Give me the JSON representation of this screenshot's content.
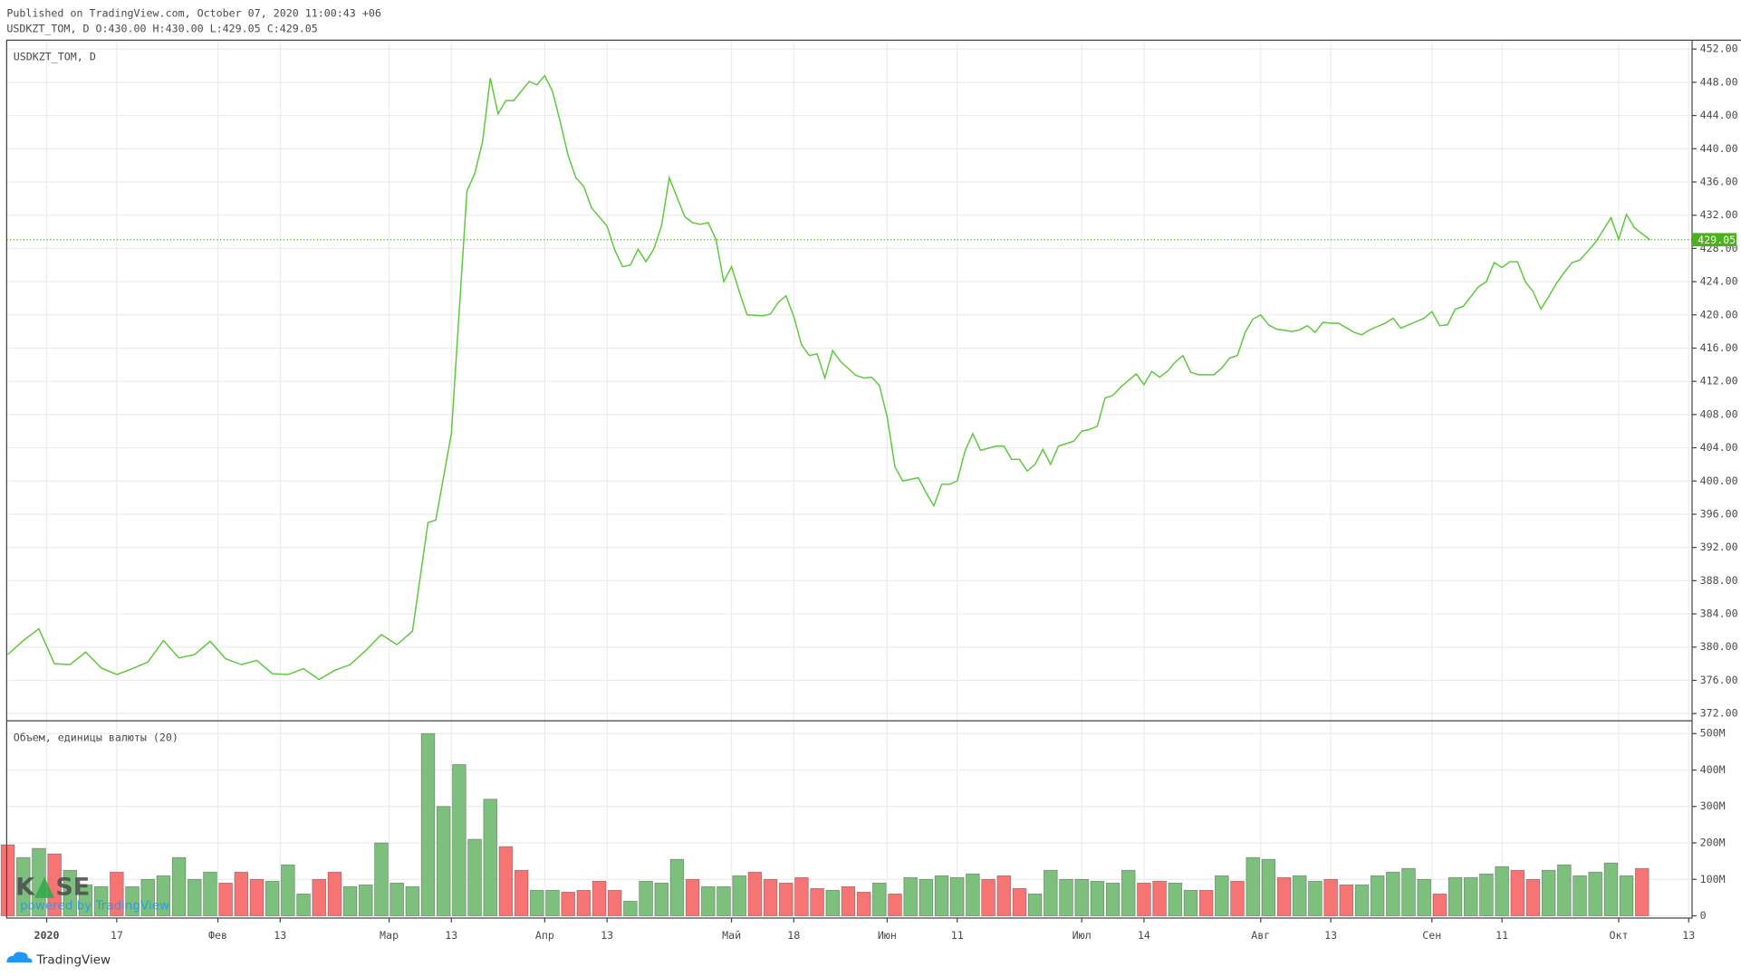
{
  "header": {
    "published": "Published on TradingView.com, October 07, 2020 11:00:43 +06",
    "ohlc": "USDKZT_TOM, D O:430.00 H:430.00 L:429.05 C:429.05"
  },
  "logo": {
    "left": "K",
    "right": "SE",
    "tagline": "powered by TradingView"
  },
  "footer": {
    "brand": "TradingView"
  },
  "chart_data": [
    {
      "type": "line",
      "title": "USDKZT_TOM, D",
      "color": "#5cc93b",
      "grid": true,
      "last_value": 429.05,
      "last_color": "#4caf1e",
      "x": [
        0,
        2,
        4,
        6,
        8,
        10,
        12,
        14,
        16,
        18,
        20,
        22,
        24,
        26,
        28,
        30,
        32,
        34,
        36,
        38,
        40,
        42,
        44,
        46,
        48,
        50,
        52,
        54,
        55,
        57,
        59,
        60,
        61,
        62,
        63,
        64,
        65,
        67,
        68,
        69,
        70,
        71,
        72,
        73,
        74,
        75,
        77,
        78,
        79,
        80,
        81,
        82,
        83,
        84,
        85,
        87,
        88,
        89,
        90,
        91,
        92,
        93,
        94,
        95,
        97,
        98,
        99,
        100,
        101,
        102,
        103,
        104,
        105,
        106,
        107,
        109,
        110,
        111,
        112,
        113,
        114,
        115,
        117,
        118,
        119,
        120,
        121,
        122,
        123,
        124,
        125,
        127,
        128,
        129,
        130,
        131,
        132,
        133,
        134,
        135,
        137,
        138,
        139,
        140,
        141,
        142,
        143,
        145,
        146,
        147,
        148,
        149,
        150,
        151,
        152,
        153,
        155,
        156,
        157,
        158,
        159,
        160,
        161,
        162,
        163,
        165,
        166,
        167,
        168,
        169,
        170,
        171,
        173,
        174,
        175,
        176,
        177,
        178,
        179,
        181,
        182,
        183,
        184,
        185,
        186,
        187,
        189,
        190,
        191,
        192,
        193,
        194,
        195,
        196,
        197,
        198,
        199,
        200,
        201,
        202,
        204,
        205,
        206,
        207,
        208,
        209,
        211
      ],
      "values": [
        379.1,
        380.8,
        382.2,
        378,
        377.9,
        379.4,
        377.5,
        376.7,
        377.4,
        378.2,
        380.8,
        378.7,
        379.1,
        380.7,
        378.6,
        377.9,
        378.4,
        376.8,
        376.7,
        377.4,
        376.1,
        377.2,
        377.9,
        379.6,
        381.5,
        380.3,
        381.9,
        395,
        395.3,
        405.7,
        434.9,
        437,
        440.8,
        448.5,
        444.2,
        445.8,
        445.8,
        448.1,
        447.7,
        448.8,
        446.9,
        443.2,
        439.2,
        436.5,
        435.5,
        432.9,
        430.7,
        427.8,
        425.8,
        426,
        427.9,
        426.4,
        427.9,
        430.7,
        436.5,
        431.8,
        431.1,
        430.9,
        431.1,
        429.1,
        424,
        425.8,
        422.8,
        420,
        419.9,
        420.1,
        421.5,
        422.3,
        419.8,
        416.4,
        415.1,
        415.3,
        412.4,
        415.7,
        414.4,
        412.7,
        412.4,
        412.5,
        411.5,
        407.7,
        401.7,
        400,
        400.4,
        398.6,
        397,
        399.6,
        399.6,
        400,
        403.6,
        405.7,
        403.7,
        404.2,
        404.2,
        402.6,
        402.6,
        401.2,
        402,
        403.8,
        402,
        404.2,
        404.8,
        406,
        406.2,
        406.6,
        410,
        410.3,
        411.3,
        412.9,
        411.6,
        413.2,
        412.5,
        413.2,
        414.3,
        415.1,
        413.1,
        412.8,
        412.8,
        413.6,
        414.8,
        415.1,
        417.9,
        419.5,
        420,
        418.8,
        418.3,
        418,
        418.2,
        418.7,
        417.9,
        419.1,
        419,
        419,
        417.9,
        417.6,
        418.2,
        418.6,
        419,
        419.6,
        418.4,
        419.2,
        419.6,
        420.4,
        418.7,
        418.8,
        420.7,
        421,
        423.4,
        424,
        426.3,
        425.7,
        426.4,
        426.4,
        424,
        422.8,
        420.7,
        422.2,
        423.8,
        425.1,
        426.3,
        426.6,
        428.7,
        430.2,
        431.7,
        429.1,
        432.1,
        430.5,
        429.05
      ],
      "xlim": [
        0,
        216
      ],
      "xticks": [
        {
          "value": 5,
          "label": "2020"
        },
        {
          "value": 14,
          "label": "17"
        },
        {
          "value": 27,
          "label": "Фев"
        },
        {
          "value": 35,
          "label": "13"
        },
        {
          "value": 49,
          "label": "Мар"
        },
        {
          "value": 57,
          "label": "13"
        },
        {
          "value": 69,
          "label": "Апр"
        },
        {
          "value": 77,
          "label": "13"
        },
        {
          "value": 93,
          "label": "Май"
        },
        {
          "value": 101,
          "label": "18"
        },
        {
          "value": 113,
          "label": "Июн"
        },
        {
          "value": 122,
          "label": "11"
        },
        {
          "value": 138,
          "label": "Июл"
        },
        {
          "value": 146,
          "label": "14"
        },
        {
          "value": 161,
          "label": "Авг"
        },
        {
          "value": 170,
          "label": "13"
        },
        {
          "value": 183,
          "label": "Сен"
        },
        {
          "value": 192,
          "label": "11"
        },
        {
          "value": 207,
          "label": "Окт"
        },
        {
          "value": 216,
          "label": "13"
        }
      ],
      "ylim": [
        372,
        452
      ],
      "yticks": [
        {
          "value": 372,
          "label": "372.00"
        },
        {
          "value": 376,
          "label": "376.00"
        },
        {
          "value": 380,
          "label": "380.00"
        },
        {
          "value": 384,
          "label": "384.00"
        },
        {
          "value": 388,
          "label": "388.00"
        },
        {
          "value": 392,
          "label": "392.00"
        },
        {
          "value": 396,
          "label": "396.00"
        },
        {
          "value": 400,
          "label": "400.00"
        },
        {
          "value": 404,
          "label": "404.00"
        },
        {
          "value": 408,
          "label": "408.00"
        },
        {
          "value": 412,
          "label": "412.00"
        },
        {
          "value": 416,
          "label": "416.00"
        },
        {
          "value": 420,
          "label": "420.00"
        },
        {
          "value": 424,
          "label": "424.00"
        },
        {
          "value": 428,
          "label": "428.00"
        },
        {
          "value": 432,
          "label": "432.00"
        },
        {
          "value": 436,
          "label": "436.00"
        },
        {
          "value": 440,
          "label": "440.00"
        },
        {
          "value": 444,
          "label": "444.00"
        },
        {
          "value": 448,
          "label": "448.00"
        },
        {
          "value": 452,
          "label": "452.00"
        }
      ]
    },
    {
      "type": "bar",
      "title": "Объем, единицы валюты (20)",
      "grid": true,
      "x": [
        0,
        2,
        4,
        6,
        8,
        10,
        12,
        14,
        16,
        18,
        20,
        22,
        24,
        26,
        28,
        30,
        32,
        34,
        36,
        38,
        40,
        42,
        44,
        46,
        48,
        50,
        52,
        54,
        56,
        58,
        60,
        62,
        64,
        66,
        68,
        70,
        72,
        74,
        76,
        78,
        80,
        82,
        84,
        86,
        88,
        90,
        92,
        94,
        96,
        98,
        100,
        102,
        104,
        106,
        108,
        110,
        112,
        114,
        116,
        118,
        120,
        122,
        124,
        126,
        128,
        130,
        132,
        134,
        136,
        138,
        140,
        142,
        144,
        146,
        148,
        150,
        152,
        154,
        156,
        158,
        160,
        162,
        164,
        166,
        168,
        170,
        172,
        174,
        176,
        178,
        180,
        182,
        184,
        186,
        188,
        190,
        192,
        194,
        196,
        198,
        200,
        202,
        204,
        206,
        208,
        210
      ],
      "values": [
        195000000,
        160000000,
        185000000,
        170000000,
        125000000,
        85000000,
        80000000,
        120000000,
        80000000,
        100000000,
        110000000,
        160000000,
        100000000,
        120000000,
        90000000,
        120000000,
        100000000,
        95000000,
        140000000,
        60000000,
        100000000,
        120000000,
        80000000,
        85000000,
        200000000,
        90000000,
        80000000,
        500000000,
        300000000,
        415000000,
        210000000,
        320000000,
        190000000,
        125000000,
        70000000,
        70000000,
        65000000,
        70000000,
        95000000,
        70000000,
        40000000,
        95000000,
        90000000,
        155000000,
        100000000,
        80000000,
        80000000,
        110000000,
        120000000,
        100000000,
        90000000,
        105000000,
        75000000,
        70000000,
        80000000,
        65000000,
        90000000,
        60000000,
        105000000,
        100000000,
        110000000,
        105000000,
        115000000,
        100000000,
        110000000,
        75000000,
        60000000,
        125000000,
        100000000,
        100000000,
        95000000,
        90000000,
        125000000,
        90000000,
        95000000,
        90000000,
        70000000,
        70000000,
        110000000,
        95000000,
        160000000,
        155000000,
        105000000,
        110000000,
        95000000,
        100000000,
        85000000,
        85000000,
        110000000,
        120000000,
        130000000,
        100000000,
        60000000,
        105000000,
        105000000,
        115000000,
        135000000,
        125000000,
        100000000,
        125000000,
        140000000,
        110000000,
        120000000,
        145000000,
        110000000,
        130000000
      ],
      "colors": [
        "#f77474",
        "#7dbf7d",
        "#7dbf7d",
        "#f77474",
        "#7dbf7d",
        "#7dbf7d",
        "#7dbf7d",
        "#f77474",
        "#7dbf7d",
        "#7dbf7d",
        "#7dbf7d",
        "#7dbf7d",
        "#7dbf7d",
        "#7dbf7d",
        "#f77474",
        "#f77474",
        "#f77474",
        "#7dbf7d",
        "#7dbf7d",
        "#7dbf7d",
        "#f77474",
        "#f77474",
        "#7dbf7d",
        "#7dbf7d",
        "#7dbf7d",
        "#7dbf7d",
        "#7dbf7d",
        "#7dbf7d",
        "#7dbf7d",
        "#7dbf7d",
        "#7dbf7d",
        "#7dbf7d",
        "#f77474",
        "#f77474",
        "#7dbf7d",
        "#7dbf7d",
        "#f77474",
        "#f77474",
        "#f77474",
        "#f77474",
        "#7dbf7d",
        "#7dbf7d",
        "#7dbf7d",
        "#7dbf7d",
        "#f77474",
        "#7dbf7d",
        "#7dbf7d",
        "#7dbf7d",
        "#f77474",
        "#f77474",
        "#f77474",
        "#f77474",
        "#f77474",
        "#7dbf7d",
        "#f77474",
        "#f77474",
        "#7dbf7d",
        "#f77474",
        "#7dbf7d",
        "#7dbf7d",
        "#7dbf7d",
        "#7dbf7d",
        "#7dbf7d",
        "#f77474",
        "#f77474",
        "#f77474",
        "#7dbf7d",
        "#7dbf7d",
        "#7dbf7d",
        "#7dbf7d",
        "#7dbf7d",
        "#7dbf7d",
        "#7dbf7d",
        "#f77474",
        "#f77474",
        "#7dbf7d",
        "#7dbf7d",
        "#f77474",
        "#7dbf7d",
        "#f77474",
        "#7dbf7d",
        "#7dbf7d",
        "#f77474",
        "#7dbf7d",
        "#7dbf7d",
        "#f77474",
        "#f77474",
        "#7dbf7d",
        "#7dbf7d",
        "#7dbf7d",
        "#7dbf7d",
        "#7dbf7d",
        "#f77474",
        "#7dbf7d",
        "#7dbf7d",
        "#7dbf7d",
        "#7dbf7d",
        "#f77474",
        "#f77474",
        "#7dbf7d",
        "#7dbf7d",
        "#7dbf7d",
        "#7dbf7d",
        "#7dbf7d",
        "#7dbf7d",
        "#f77474"
      ],
      "ylim": [
        0,
        500000000
      ],
      "yticks": [
        0,
        {
          "value": 100000000,
          "label": "100M"
        },
        {
          "value": 200000000,
          "label": "200M"
        },
        {
          "value": 300000000,
          "label": "300M"
        },
        {
          "value": 400000000,
          "label": "400M"
        },
        {
          "value": 500000000,
          "label": "500M"
        }
      ]
    }
  ]
}
